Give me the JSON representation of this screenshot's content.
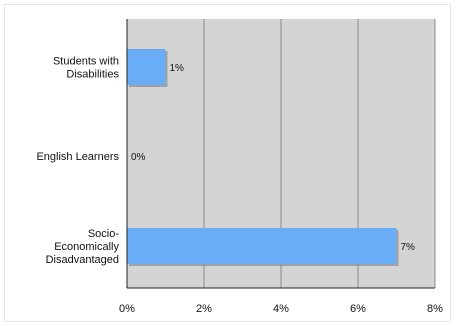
{
  "chart_data": {
    "type": "bar",
    "orientation": "horizontal",
    "categories": [
      [
        "Students with",
        "Disabilities"
      ],
      [
        "English Learners"
      ],
      [
        "Socio-",
        "Economically",
        "Disadvantaged"
      ]
    ],
    "values": [
      1,
      0,
      7
    ],
    "data_labels": [
      "1%",
      "0%",
      "7%"
    ],
    "xlim": [
      0,
      8
    ],
    "xticks": [
      0,
      2,
      4,
      6,
      8
    ],
    "xtick_labels": [
      "0%",
      "2%",
      "4%",
      "6%",
      "8%"
    ],
    "title": "",
    "xlabel": "",
    "ylabel": "",
    "grid": "vertical",
    "legend": "none",
    "colors": {
      "bar": "#6aadf7",
      "bar_shadow": "#8c8c8c",
      "plot_background": "#d4d4d4",
      "gridline": "#8a8a8a",
      "axis": "#222222"
    }
  }
}
